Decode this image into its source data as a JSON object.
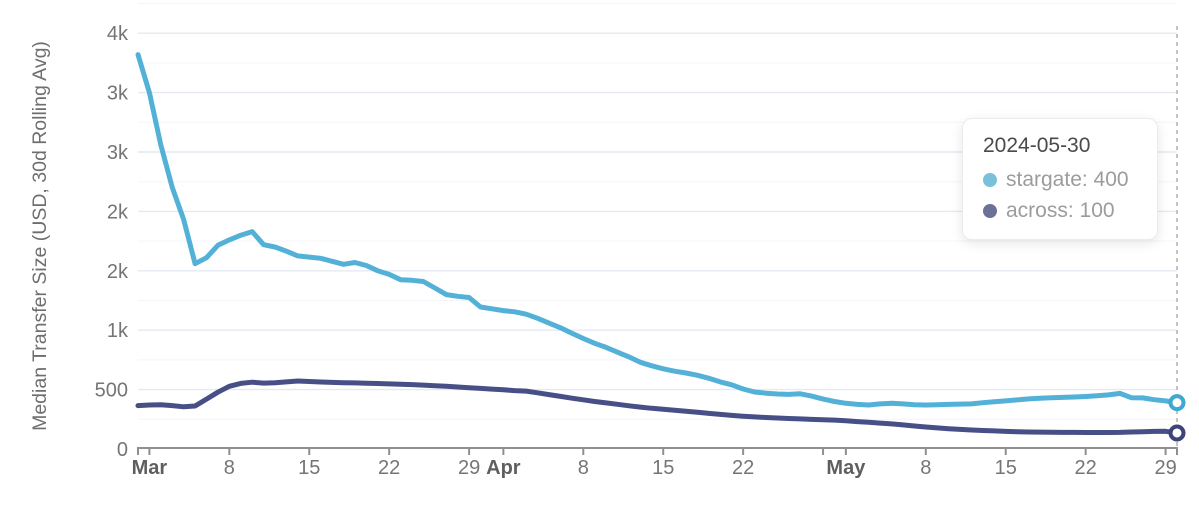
{
  "tooltip": {
    "title": "2024-05-30",
    "rows": [
      {
        "series": "stargate",
        "value": "400",
        "text": "stargate: 400",
        "dot_color": "#79c0da"
      },
      {
        "series": "across",
        "value": "100",
        "text": "across: 100",
        "dot_color": "#6c7198"
      }
    ]
  },
  "colors": {
    "stargate_line": "#53b1d8",
    "across_line": "#474f87",
    "stargate_marker_ring": "#3fa8d2",
    "across_marker_ring": "#3d4478",
    "grid_major": "#e4e9f2",
    "grid_minor": "#f3f5fa",
    "axis": "#8f8f8f",
    "tick_text": "#757575",
    "month_text": "#5f5f5f",
    "crosshair": "#b5b5b5",
    "background": "#ffffff"
  },
  "chart_data": {
    "type": "line",
    "title": "",
    "xlabel": "",
    "ylabel": "Median Transfer Size (USD, 30d Rolling Avg)",
    "ylim": [
      0,
      3800
    ],
    "grid": "on",
    "legend": "tooltip-overlay-top-right",
    "x_start_date": "2024-02-29",
    "x_end_date": "2024-05-30",
    "days_total": 91,
    "y_axis": {
      "ticks": [
        {
          "value": 0,
          "label": "0"
        },
        {
          "value": 500,
          "label": "500"
        },
        {
          "value": 1000,
          "label": "1k"
        },
        {
          "value": 1500,
          "label": "2k"
        },
        {
          "value": 2000,
          "label": "2k"
        },
        {
          "value": 2500,
          "label": "3k"
        },
        {
          "value": 3000,
          "label": "3k"
        },
        {
          "value": 3500,
          "label": "4k"
        }
      ],
      "minor_ticks": [
        250,
        750,
        1250,
        1750,
        2250,
        2750,
        3250,
        3750
      ]
    },
    "x_axis": {
      "ticks": [
        {
          "day": 1,
          "label": "Mar",
          "bold": true
        },
        {
          "day": 8,
          "label": "8"
        },
        {
          "day": 15,
          "label": "15"
        },
        {
          "day": 22,
          "label": "22"
        },
        {
          "day": 29,
          "label": "29"
        },
        {
          "day": 32,
          "label": "Apr",
          "bold": true
        },
        {
          "day": 39,
          "label": "8"
        },
        {
          "day": 46,
          "label": "15"
        },
        {
          "day": 53,
          "label": "22"
        },
        {
          "day": 60,
          "label": ""
        },
        {
          "day": 62,
          "label": "May",
          "bold": true
        },
        {
          "day": 69,
          "label": "8"
        },
        {
          "day": 76,
          "label": "15"
        },
        {
          "day": 83,
          "label": "22"
        },
        {
          "day": 90,
          "label": "29"
        }
      ]
    },
    "crosshair": {
      "day": 91,
      "date": "2024-05-30"
    },
    "series": [
      {
        "name": "stargate",
        "color": "#53b1d8",
        "marker_ring_color": "#3fa8d2",
        "end_value_label": "400",
        "values": [
          3320,
          3000,
          2560,
          2200,
          1930,
          1560,
          1610,
          1715,
          1760,
          1800,
          1830,
          1720,
          1700,
          1665,
          1625,
          1615,
          1605,
          1580,
          1555,
          1570,
          1545,
          1500,
          1470,
          1425,
          1420,
          1410,
          1355,
          1300,
          1285,
          1275,
          1195,
          1180,
          1165,
          1155,
          1135,
          1100,
          1060,
          1020,
          975,
          930,
          890,
          855,
          815,
          775,
          730,
          700,
          675,
          655,
          640,
          620,
          595,
          565,
          540,
          505,
          480,
          470,
          463,
          460,
          465,
          445,
          420,
          400,
          385,
          375,
          370,
          380,
          385,
          380,
          373,
          370,
          372,
          375,
          378,
          380,
          390,
          398,
          405,
          413,
          422,
          428,
          431,
          434,
          438,
          442,
          448,
          455,
          468,
          432,
          430,
          415,
          405,
          390
        ]
      },
      {
        "name": "across",
        "color": "#474f87",
        "marker_ring_color": "#3d4478",
        "end_value_label": "100",
        "values": [
          365,
          370,
          373,
          365,
          355,
          362,
          420,
          478,
          528,
          552,
          562,
          555,
          558,
          565,
          572,
          568,
          564,
          561,
          558,
          556,
          554,
          551,
          548,
          545,
          542,
          538,
          533,
          528,
          522,
          516,
          510,
          504,
          498,
          492,
          487,
          473,
          458,
          443,
          428,
          414,
          400,
          388,
          376,
          364,
          353,
          343,
          335,
          327,
          318,
          309,
          300,
          291,
          283,
          276,
          270,
          265,
          261,
          257,
          253,
          249,
          246,
          243,
          237,
          231,
          225,
          218,
          211,
          203,
          194,
          185,
          178,
          171,
          165,
          160,
          156,
          152,
          148,
          145,
          143,
          142,
          141,
          140,
          140,
          139,
          139,
          139,
          140,
          143,
          146,
          148,
          149,
          135
        ]
      }
    ]
  }
}
